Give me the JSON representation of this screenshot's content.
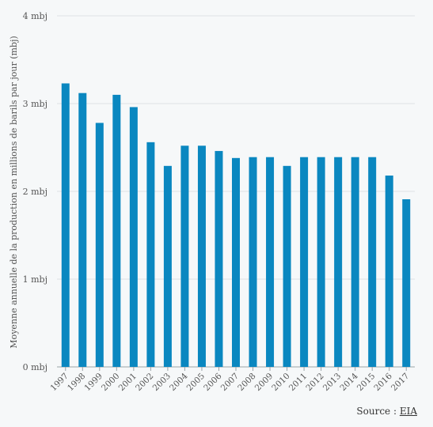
{
  "chart_data": {
    "type": "bar",
    "ylabel": "Moyenne annuelle de la production en millions de barils par jour (mbj)",
    "xlabel": "",
    "ylim": [
      0,
      4
    ],
    "yticks": [
      {
        "value": 0,
        "label": "0 mbj"
      },
      {
        "value": 1,
        "label": "1 mbj"
      },
      {
        "value": 2,
        "label": "2 mbj"
      },
      {
        "value": 3,
        "label": "3 mbj"
      },
      {
        "value": 4,
        "label": "4 mbj"
      }
    ],
    "grid": true,
    "bar_color": "#0a87c0",
    "categories": [
      "1997",
      "1998",
      "1999",
      "2000",
      "2001",
      "2002",
      "2003",
      "2004",
      "2005",
      "2006",
      "2007",
      "2008",
      "2009",
      "2010",
      "2011",
      "2012",
      "2013",
      "2014",
      "2015",
      "2016",
      "2017"
    ],
    "values": [
      3.23,
      3.12,
      2.78,
      3.1,
      2.96,
      2.56,
      2.29,
      2.52,
      2.52,
      2.46,
      2.38,
      2.39,
      2.39,
      2.29,
      2.39,
      2.39,
      2.39,
      2.39,
      2.39,
      2.18,
      1.91
    ]
  },
  "source": {
    "prefix": "Source : ",
    "link": "EIA"
  }
}
